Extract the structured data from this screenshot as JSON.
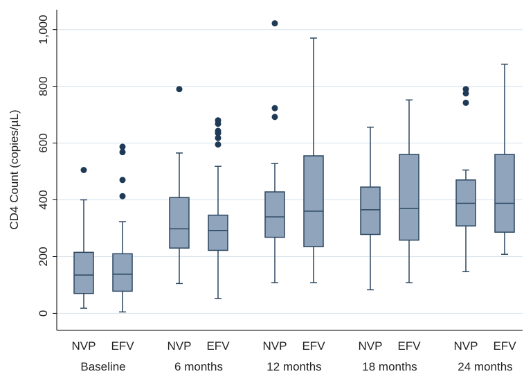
{
  "chart_data": {
    "type": "box",
    "ylabel": "CD4 Count (copies/µL)",
    "xlabel": "",
    "ylim": [
      -60,
      1070
    ],
    "yticks": [
      0,
      200,
      400,
      600,
      800,
      1000
    ],
    "ytick_labels": [
      "0",
      "200",
      "400",
      "600",
      "800",
      "1,000"
    ],
    "grid": "horizontal",
    "colors": {
      "box_fill": "#90A4BC",
      "box_stroke": "#2B4660",
      "outlier": "#1F3A57",
      "grid": "#DCE6EE",
      "axis": "#000000"
    },
    "groups": [
      {
        "label": "Baseline",
        "boxes": [
          {
            "name": "NVP",
            "min": 18,
            "q1": 70,
            "median": 135,
            "q3": 215,
            "max": 400,
            "outliers": [
              505
            ]
          },
          {
            "name": "EFV",
            "min": 5,
            "q1": 78,
            "median": 138,
            "q3": 210,
            "max": 323,
            "outliers": [
              413,
              470,
              568,
              587
            ]
          }
        ]
      },
      {
        "label": "6 months",
        "boxes": [
          {
            "name": "NVP",
            "min": 105,
            "q1": 230,
            "median": 298,
            "q3": 408,
            "max": 565,
            "outliers": [
              790
            ]
          },
          {
            "name": "EFV",
            "min": 52,
            "q1": 222,
            "median": 292,
            "q3": 346,
            "max": 518,
            "outliers": [
              595,
              618,
              635,
              643,
              668,
              680
            ]
          }
        ]
      },
      {
        "label": "12 months",
        "boxes": [
          {
            "name": "NVP",
            "min": 108,
            "q1": 268,
            "median": 340,
            "q3": 428,
            "max": 528,
            "outliers": [
              692,
              723,
              1022
            ]
          },
          {
            "name": "EFV",
            "min": 108,
            "q1": 235,
            "median": 360,
            "q3": 555,
            "max": 970,
            "outliers": []
          }
        ]
      },
      {
        "label": "18 months",
        "boxes": [
          {
            "name": "NVP",
            "min": 83,
            "q1": 278,
            "median": 365,
            "q3": 445,
            "max": 656,
            "outliers": []
          },
          {
            "name": "EFV",
            "min": 108,
            "q1": 258,
            "median": 370,
            "q3": 560,
            "max": 752,
            "outliers": []
          }
        ]
      },
      {
        "label": "24 months",
        "boxes": [
          {
            "name": "NVP",
            "min": 147,
            "q1": 308,
            "median": 388,
            "q3": 470,
            "max": 505,
            "outliers": [
              742,
              775,
              790
            ]
          },
          {
            "name": "EFV",
            "min": 208,
            "q1": 286,
            "median": 388,
            "q3": 560,
            "max": 878,
            "outliers": []
          }
        ]
      }
    ]
  }
}
